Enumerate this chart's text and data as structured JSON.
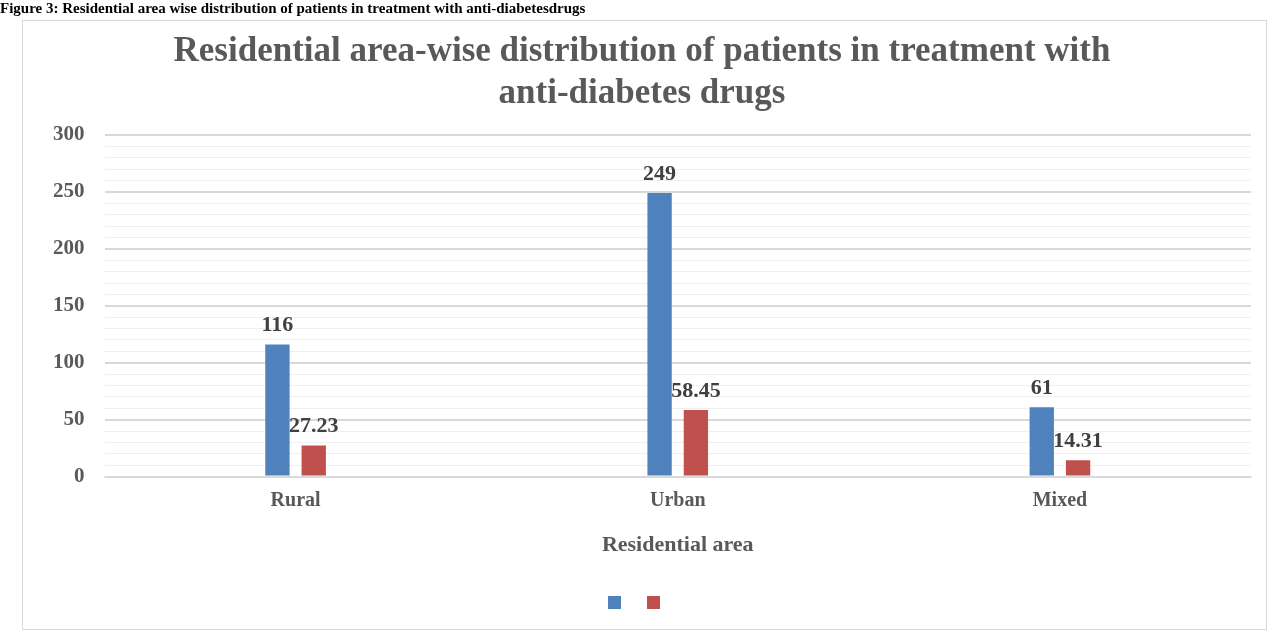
{
  "chart_data": {
    "type": "bar",
    "title": "Residential area-wise distribution of patients in treatment with anti-diabetes drugs",
    "xlabel": "Residential area",
    "annotations": [
      "Figure 3: Residential area wise distribution of patients in treatment with anti-diabetesdrugs"
    ],
    "categories": [
      "Rural",
      "Urban",
      "Mixed"
    ],
    "series": [
      {
        "color": "#4f81bd",
        "values": [
          116,
          249,
          61
        ]
      },
      {
        "color": "#c0504d",
        "values": [
          27.23,
          58.45,
          14.31
        ]
      }
    ],
    "ylim": [
      0,
      300
    ],
    "yticks": [
      0,
      {
        "value": 10,
        "label": null
      },
      {
        "value": 20,
        "label": null
      },
      {
        "value": 30,
        "label": null
      },
      {
        "value": 40,
        "label": null
      },
      50,
      {
        "value": 60,
        "label": null
      },
      {
        "value": 70,
        "label": null
      },
      {
        "value": 80,
        "label": null
      },
      {
        "value": 90,
        "label": null
      },
      100,
      {
        "value": 110,
        "label": null
      },
      {
        "value": 120,
        "label": null
      },
      {
        "value": 130,
        "label": null
      },
      {
        "value": 140,
        "label": null
      },
      150,
      {
        "value": 160,
        "label": null
      },
      {
        "value": 170,
        "label": null
      },
      {
        "value": 180,
        "label": null
      },
      {
        "value": 190,
        "label": null
      },
      200,
      {
        "value": 210,
        "label": null
      },
      {
        "value": 220,
        "label": null
      },
      {
        "value": 230,
        "label": null
      },
      {
        "value": 240,
        "label": null
      },
      250,
      {
        "value": 260,
        "label": null
      },
      {
        "value": 270,
        "label": null
      },
      {
        "value": 280,
        "label": null
      },
      {
        "value": 290,
        "label": null
      },
      300
    ],
    "grid": "y",
    "data_labels": true
  }
}
